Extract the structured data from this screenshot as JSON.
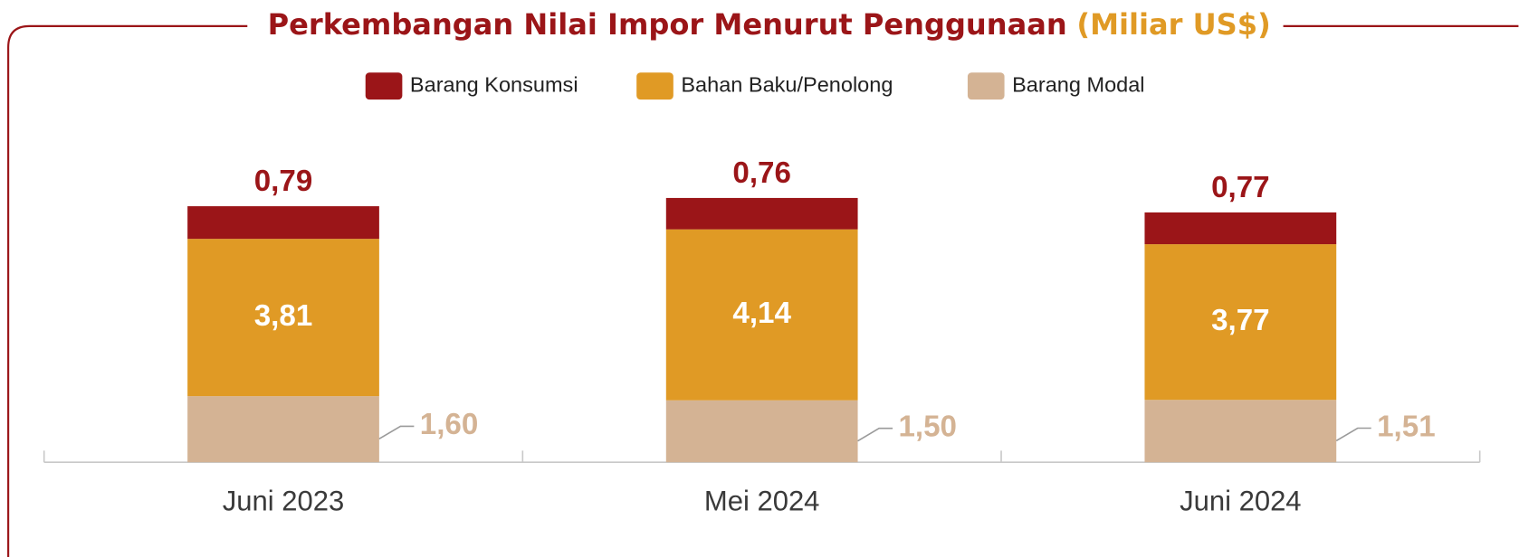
{
  "chart_data": {
    "type": "stacked_bar",
    "title": "Perkembangan Nilai Impor Menurut Penggunaan",
    "subtitle": "(Miliar US$)",
    "categories": [
      "Juni 2023",
      "Mei 2024",
      "Juni 2024"
    ],
    "series": [
      {
        "name": "Barang Konsumsi",
        "color": "#9b1518",
        "values": [
          0.79,
          0.76,
          0.77
        ],
        "value_labels": [
          "0,79",
          "0,76",
          "0,77"
        ]
      },
      {
        "name": "Bahan Baku/Penolong",
        "color": "#e09a25",
        "values": [
          3.81,
          4.14,
          3.77
        ],
        "value_labels": [
          "3,81",
          "4,14",
          "3,77"
        ]
      },
      {
        "name": "Barang Modal",
        "color": "#d4b394",
        "values": [
          1.6,
          1.5,
          1.51
        ],
        "value_labels": [
          "1,60",
          "1,50",
          "1,51"
        ]
      }
    ]
  }
}
